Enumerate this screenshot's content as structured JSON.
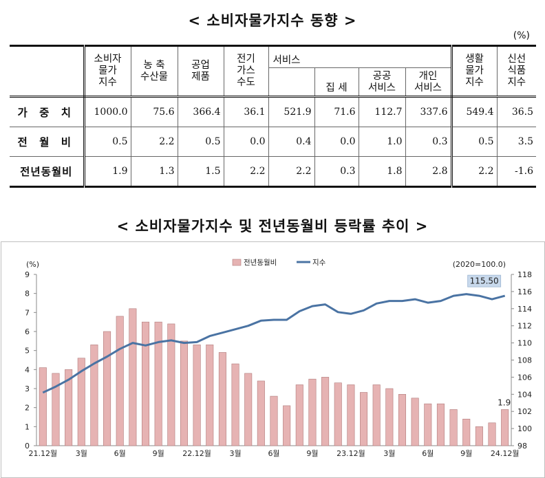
{
  "table": {
    "title": "< 소비자물가지수 동향 >",
    "unit": "(%)",
    "headers": {
      "cpi": [
        "소비자",
        "물가",
        "지수"
      ],
      "agri": [
        "농 축",
        "수산물"
      ],
      "industrial": [
        "공업",
        "제품"
      ],
      "utilities": [
        "전기",
        "가스",
        "수도"
      ],
      "services": "서비스",
      "rent": "집 세",
      "public_services": [
        "공공",
        "서비스"
      ],
      "private_services": [
        "개인",
        "서비스"
      ],
      "living": [
        "생활",
        "물가",
        "지수"
      ],
      "fresh": [
        "신선",
        "식품",
        "지수"
      ]
    },
    "rows": [
      {
        "label": "가 중 치",
        "values": [
          "1000.0",
          "75.6",
          "366.4",
          "36.1",
          "521.9",
          "71.6",
          "112.7",
          "337.6",
          "549.4",
          "36.5"
        ]
      },
      {
        "label": "전 월 비",
        "values": [
          "0.5",
          "2.2",
          "0.5",
          "0.0",
          "0.4",
          "0.0",
          "1.0",
          "0.3",
          "0.5",
          "3.5"
        ]
      },
      {
        "label": "전년동월비",
        "values": [
          "1.9",
          "1.3",
          "1.5",
          "2.2",
          "2.2",
          "0.3",
          "1.8",
          "2.8",
          "2.2",
          "-1.6"
        ]
      }
    ]
  },
  "chart_title": "< 소비자물가지수 및 전년동월비 등락률 추이 >",
  "chart_data": {
    "type": "bar",
    "categories": [
      "21.12",
      "22.1",
      "22.2",
      "22.3",
      "22.4",
      "22.5",
      "22.6",
      "22.7",
      "22.8",
      "22.9",
      "22.10",
      "22.11",
      "22.12",
      "23.1",
      "23.2",
      "23.3",
      "23.4",
      "23.5",
      "23.6",
      "23.7",
      "23.8",
      "23.9",
      "23.10",
      "23.11",
      "23.12",
      "24.1",
      "24.2",
      "24.3",
      "24.4",
      "24.5",
      "24.6",
      "24.7",
      "24.8",
      "24.9",
      "24.10",
      "24.11",
      "24.12"
    ],
    "x_tick_labels": [
      "21.12월",
      "",
      "",
      "3월",
      "",
      "",
      "6월",
      "",
      "",
      "9월",
      "",
      "",
      "22.12월",
      "",
      "",
      "3월",
      "",
      "",
      "6월",
      "",
      "",
      "9월",
      "",
      "",
      "23.12월",
      "",
      "",
      "3월",
      "",
      "",
      "6월",
      "",
      "",
      "9월",
      "",
      "",
      "24.12월"
    ],
    "series": [
      {
        "name": "전년동월비",
        "type": "bar",
        "axis": "left",
        "color": "#e6b3b3",
        "values": [
          4.1,
          3.8,
          4.0,
          4.6,
          5.3,
          6.0,
          6.8,
          7.2,
          6.5,
          6.5,
          6.4,
          5.5,
          5.3,
          5.3,
          4.9,
          4.3,
          3.8,
          3.4,
          2.6,
          2.1,
          3.2,
          3.5,
          3.6,
          3.3,
          3.2,
          2.8,
          3.2,
          3.0,
          2.7,
          2.5,
          2.2,
          2.2,
          1.9,
          1.4,
          1.0,
          1.2,
          1.9
        ]
      },
      {
        "name": "지수",
        "type": "line",
        "axis": "right",
        "color": "#4a73a3",
        "values": [
          104.2,
          104.9,
          105.7,
          106.7,
          107.6,
          108.4,
          109.3,
          110.0,
          109.7,
          110.1,
          110.3,
          110.0,
          110.1,
          110.8,
          111.2,
          111.6,
          112.0,
          112.6,
          112.7,
          112.7,
          113.7,
          114.3,
          114.5,
          113.6,
          113.4,
          113.8,
          114.6,
          114.9,
          114.9,
          115.1,
          114.7,
          114.9,
          115.5,
          115.7,
          115.5,
          115.1,
          115.5
        ]
      }
    ],
    "y_left": {
      "label": "(%)",
      "min": 0,
      "max": 9,
      "ticks": [
        0,
        1,
        2,
        3,
        4,
        5,
        6,
        7,
        8,
        9
      ]
    },
    "y_right": {
      "label": "(2020=100.0)",
      "min": 98,
      "max": 118,
      "ticks": [
        98,
        100,
        102,
        104,
        106,
        108,
        110,
        112,
        114,
        116,
        118
      ]
    },
    "annotations": {
      "last_index_label": "115.50",
      "last_rate_label": "1.9"
    },
    "legend_position": "top-center",
    "grid": false
  }
}
